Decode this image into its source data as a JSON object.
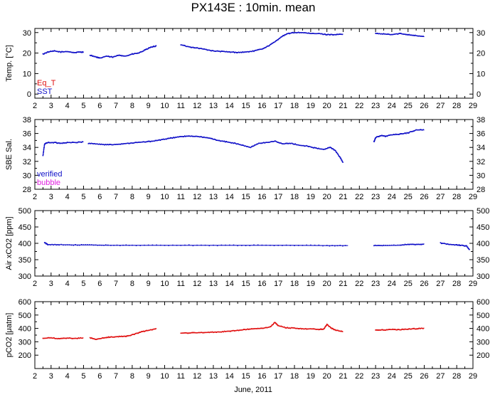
{
  "title": "PX143E : 10min. mean",
  "xlabel": "June, 2011",
  "colors": {
    "blue": "#1010c8",
    "red": "#e01010",
    "magenta": "#e020e0",
    "frame": "#000000"
  },
  "chart_data": [
    {
      "type": "scatter",
      "ylabel": "Temp. [°C]",
      "xlim": [
        2,
        29
      ],
      "ylim": [
        -2,
        32
      ],
      "yticks": [
        0,
        10,
        20,
        30
      ],
      "xticks": [
        2,
        3,
        4,
        5,
        6,
        7,
        8,
        9,
        10,
        11,
        12,
        13,
        14,
        15,
        16,
        17,
        18,
        19,
        20,
        21,
        22,
        23,
        24,
        25,
        26,
        27,
        28,
        29
      ],
      "legend": [
        {
          "name": "Eq_T",
          "color": "#e01010"
        },
        {
          "name": "SST",
          "color": "#1010c8"
        }
      ],
      "series": [
        {
          "name": "SST",
          "color": "#1010c8",
          "segments": [
            {
              "x": [
                2.5,
                2.8,
                3.2,
                3.6,
                4.0,
                4.4,
                4.8,
                5.0
              ],
              "y": [
                19.5,
                20.5,
                21.0,
                20.5,
                20.8,
                20.2,
                20.5,
                20.5
              ]
            },
            {
              "x": [
                5.4,
                5.8,
                6.0,
                6.4,
                6.8,
                7.2,
                7.6,
                8.0,
                8.4,
                8.8,
                9.2,
                9.5
              ],
              "y": [
                19.0,
                18.0,
                17.5,
                18.5,
                18.0,
                19.0,
                18.5,
                19.5,
                20.0,
                21.5,
                23.0,
                23.5
              ]
            },
            {
              "x": [
                11.0,
                11.5,
                12.0,
                12.5,
                13.0,
                13.5,
                14.0,
                14.5,
                15.0,
                15.5,
                16.0,
                16.4,
                16.8,
                17.2,
                17.6,
                18.0,
                18.5,
                19.0,
                19.5,
                20.0,
                20.5,
                21.0
              ],
              "y": [
                24.0,
                23.0,
                22.5,
                21.8,
                21.0,
                20.8,
                20.5,
                20.3,
                20.5,
                21.0,
                22.0,
                23.5,
                25.5,
                28.0,
                29.5,
                30.0,
                30.0,
                29.5,
                29.5,
                29.0,
                29.0,
                29.2
              ]
            },
            {
              "x": [
                23.0,
                23.5,
                24.0,
                24.5,
                25.0,
                25.5,
                26.0
              ],
              "y": [
                29.5,
                29.3,
                29.0,
                29.5,
                29.0,
                28.5,
                28.0
              ]
            }
          ]
        }
      ]
    },
    {
      "type": "scatter",
      "ylabel": "SBE Sal.",
      "xlim": [
        2,
        29
      ],
      "ylim": [
        28,
        38
      ],
      "yticks": [
        28,
        30,
        32,
        34,
        36,
        38
      ],
      "xticks": [
        2,
        3,
        4,
        5,
        6,
        7,
        8,
        9,
        10,
        11,
        12,
        13,
        14,
        15,
        16,
        17,
        18,
        19,
        20,
        21,
        22,
        23,
        24,
        25,
        26,
        27,
        28,
        29
      ],
      "legend": [
        {
          "name": "verified",
          "color": "#1010c8"
        },
        {
          "name": "bubble",
          "color": "#e020e0"
        }
      ],
      "series": [
        {
          "name": "verified",
          "color": "#1010c8",
          "segments": [
            {
              "x": [
                2.5,
                2.6,
                2.8,
                3.2,
                3.6,
                4.0,
                4.5,
                5.0
              ],
              "y": [
                32.8,
                34.5,
                34.7,
                34.7,
                34.6,
                34.7,
                34.7,
                34.8
              ]
            },
            {
              "x": [
                5.3,
                5.8,
                6.3,
                6.8,
                7.3,
                7.8,
                8.3,
                8.8,
                9.3,
                9.8,
                10.3,
                10.8,
                11.3,
                11.8,
                12.3,
                12.8,
                13.3,
                13.8,
                14.3,
                14.8,
                15.3,
                15.8,
                16.3,
                16.8,
                17.3,
                17.8,
                18.3,
                18.8,
                19.3,
                19.8,
                20.2,
                20.5,
                20.8,
                21.0
              ],
              "y": [
                34.6,
                34.5,
                34.4,
                34.4,
                34.5,
                34.6,
                34.7,
                34.8,
                34.9,
                35.1,
                35.3,
                35.5,
                35.6,
                35.6,
                35.5,
                35.3,
                35.0,
                34.8,
                34.6,
                34.3,
                34.0,
                34.6,
                34.7,
                34.9,
                34.5,
                34.6,
                34.3,
                34.2,
                33.9,
                33.7,
                34.0,
                33.6,
                32.6,
                31.8
              ]
            },
            {
              "x": [
                22.9,
                23.0,
                23.3,
                23.6,
                24.0,
                24.5,
                25.0,
                25.5,
                26.0
              ],
              "y": [
                34.8,
                35.4,
                35.7,
                35.6,
                35.8,
                35.9,
                36.1,
                36.5,
                36.5
              ]
            }
          ]
        }
      ]
    },
    {
      "type": "scatter",
      "ylabel": "Air xCO2 [ppm]",
      "xlim": [
        2,
        29
      ],
      "ylim": [
        300,
        500
      ],
      "yticks": [
        300,
        350,
        400,
        450,
        500
      ],
      "xticks": [
        2,
        3,
        4,
        5,
        6,
        7,
        8,
        9,
        10,
        11,
        12,
        13,
        14,
        15,
        16,
        17,
        18,
        19,
        20,
        21,
        22,
        23,
        24,
        25,
        26,
        27,
        28,
        29
      ],
      "series": [
        {
          "name": "Air xCO2",
          "color": "#1010c8",
          "segments": [
            {
              "x": [
                2.6,
                2.8,
                3.5,
                4.5,
                5.5,
                6.5,
                8.0,
                10.0,
                12.0,
                14.0,
                16.0,
                18.0,
                20.0,
                21.3
              ],
              "y": [
                402,
                396,
                396,
                395,
                395,
                394,
                394,
                394,
                394,
                394,
                394,
                394,
                393,
                393
              ]
            },
            {
              "x": [
                22.9,
                23.5,
                24.5,
                25.0,
                25.5,
                26.0
              ],
              "y": [
                393,
                393,
                394,
                397,
                396,
                398
              ]
            },
            {
              "x": [
                27.0,
                27.5,
                28.0,
                28.3,
                28.6,
                28.8
              ],
              "y": [
                401,
                397,
                395,
                394,
                392,
                380
              ]
            }
          ]
        }
      ]
    },
    {
      "type": "scatter",
      "ylabel": "pCO2 [μatm]",
      "xlim": [
        2,
        29
      ],
      "ylim": [
        100,
        600
      ],
      "yticks": [
        200,
        300,
        400,
        500,
        600
      ],
      "xticks": [
        2,
        3,
        4,
        5,
        6,
        7,
        8,
        9,
        10,
        11,
        12,
        13,
        14,
        15,
        16,
        17,
        18,
        19,
        20,
        21,
        22,
        23,
        24,
        25,
        26,
        27,
        28,
        29
      ],
      "series": [
        {
          "name": "pCO2",
          "color": "#e01010",
          "segments": [
            {
              "x": [
                2.5,
                3.0,
                3.5,
                4.0,
                4.5,
                5.0
              ],
              "y": [
                325,
                330,
                322,
                328,
                325,
                330
              ]
            },
            {
              "x": [
                5.4,
                5.8,
                6.2,
                6.6,
                7.0,
                7.4,
                7.8,
                8.2,
                8.6,
                9.0,
                9.5
              ],
              "y": [
                330,
                318,
                328,
                335,
                338,
                340,
                345,
                360,
                375,
                385,
                400
              ]
            },
            {
              "x": [
                11.0,
                11.5,
                12.0,
                12.5,
                13.0,
                13.5,
                14.0,
                14.5,
                15.0,
                15.5,
                16.0,
                16.5,
                16.8,
                17.0,
                17.5,
                18.0,
                18.5,
                19.0,
                19.5,
                19.8,
                20.0,
                20.3,
                20.6,
                21.0
              ],
              "y": [
                365,
                366,
                368,
                370,
                372,
                375,
                380,
                385,
                392,
                398,
                400,
                410,
                445,
                420,
                405,
                402,
                398,
                396,
                393,
                395,
                430,
                400,
                385,
                375
              ]
            },
            {
              "x": [
                23.0,
                23.5,
                24.0,
                24.5,
                25.0,
                25.5,
                26.0
              ],
              "y": [
                390,
                388,
                392,
                390,
                395,
                398,
                402
              ]
            }
          ]
        }
      ]
    }
  ]
}
